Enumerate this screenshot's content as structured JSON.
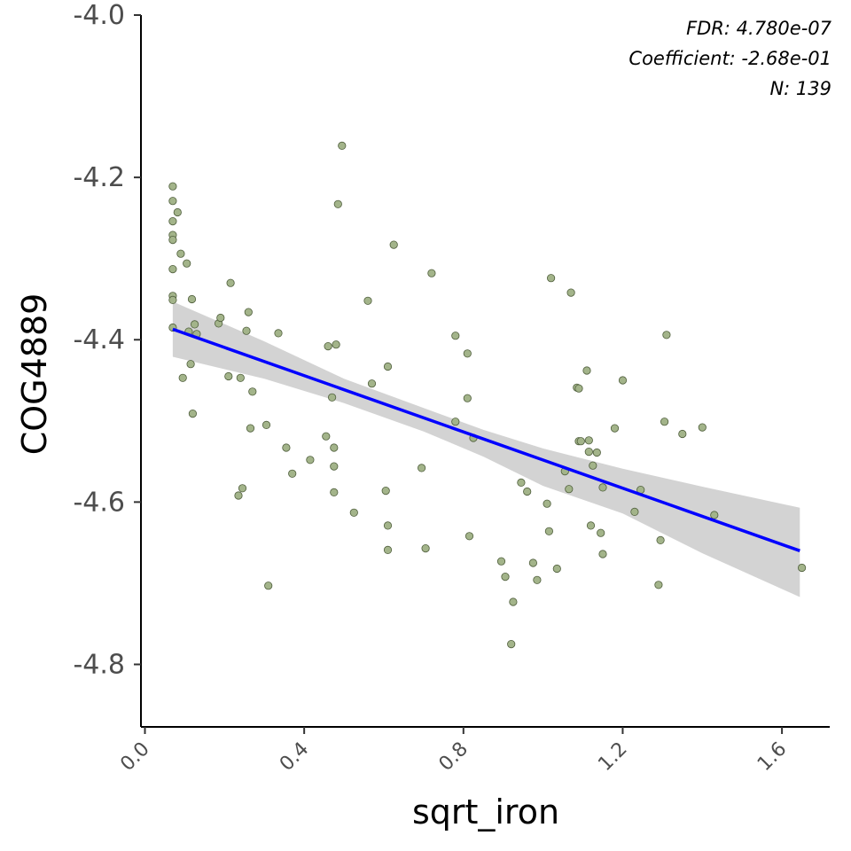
{
  "chart_data": {
    "type": "scatter",
    "xlabel": "sqrt_iron",
    "ylabel": "COG4889",
    "xlim": [
      -0.01,
      1.72
    ],
    "ylim": [
      -4.877,
      -4.0
    ],
    "x_ticks": [
      0.0,
      0.4,
      0.8,
      1.2,
      1.6
    ],
    "x_tick_labels": [
      "0.0",
      "0.4",
      "0.8",
      "1.2",
      "1.6"
    ],
    "y_ticks": [
      -4.0,
      -4.2,
      -4.4,
      -4.6,
      -4.8
    ],
    "y_tick_labels": [
      "-4.0",
      "-4.2",
      "-4.4",
      "-4.6",
      "-4.8"
    ],
    "grid": false,
    "annotations": [
      "FDR: 4.780e-07",
      "Coefficient: -2.68e-01",
      "N: 139"
    ],
    "colors": {
      "points": "#a3b48a",
      "point_stroke": "#4f5e3c",
      "fit_line": "#0000ff",
      "confidence_band": "#d3d3d3"
    },
    "fit_line": {
      "x": [
        0.07,
        1.645
      ],
      "y": [
        -4.387,
        -4.66
      ]
    },
    "confidence_band": {
      "x": [
        0.07,
        0.3,
        0.5,
        0.7,
        0.85,
        1.0,
        1.2,
        1.4,
        1.645
      ],
      "upper": [
        -4.353,
        -4.402,
        -4.448,
        -4.484,
        -4.511,
        -4.534,
        -4.559,
        -4.581,
        -4.607
      ],
      "lower": [
        -4.421,
        -4.448,
        -4.478,
        -4.513,
        -4.544,
        -4.58,
        -4.614,
        -4.663,
        -4.717
      ]
    },
    "series": [
      {
        "x": [
          0.07,
          0.07,
          0.07,
          0.07,
          0.07,
          0.07,
          0.07,
          0.07,
          0.07,
          0.082,
          0.09,
          0.095,
          0.105,
          0.11,
          0.115,
          0.118,
          0.12,
          0.125,
          0.13,
          0.185,
          0.19,
          0.21,
          0.215,
          0.235,
          0.24,
          0.245,
          0.255,
          0.26,
          0.265,
          0.27,
          0.305,
          0.31,
          0.335,
          0.355,
          0.37,
          0.415,
          0.455,
          0.46,
          0.47,
          0.475,
          0.475,
          0.475,
          0.48,
          0.485,
          0.495,
          0.525,
          0.56,
          0.57,
          0.605,
          0.61,
          0.61,
          0.61,
          0.625,
          0.695,
          0.705,
          0.72,
          0.78,
          0.78,
          0.81,
          0.81,
          0.815,
          0.825,
          0.895,
          0.905,
          0.92,
          0.925,
          0.945,
          0.96,
          0.975,
          0.985,
          1.01,
          1.015,
          1.02,
          1.035,
          1.055,
          1.065,
          1.07,
          1.085,
          1.09,
          1.09,
          1.095,
          1.11,
          1.115,
          1.115,
          1.12,
          1.125,
          1.135,
          1.145,
          1.15,
          1.15,
          1.18,
          1.2,
          1.23,
          1.245,
          1.29,
          1.295,
          1.305,
          1.31,
          1.35,
          1.4,
          1.43,
          1.65
        ],
        "y": [
          -4.211,
          -4.229,
          -4.254,
          -4.271,
          -4.277,
          -4.313,
          -4.346,
          -4.351,
          -4.385,
          -4.243,
          -4.294,
          -4.447,
          -4.306,
          -4.39,
          -4.43,
          -4.35,
          -4.491,
          -4.381,
          -4.393,
          -4.38,
          -4.373,
          -4.445,
          -4.33,
          -4.592,
          -4.447,
          -4.583,
          -4.389,
          -4.366,
          -4.509,
          -4.464,
          -4.505,
          -4.703,
          -4.392,
          -4.533,
          -4.565,
          -4.548,
          -4.519,
          -4.408,
          -4.471,
          -4.533,
          -4.556,
          -4.588,
          -4.406,
          -4.233,
          -4.161,
          -4.613,
          -4.352,
          -4.454,
          -4.586,
          -4.433,
          -4.629,
          -4.659,
          -4.283,
          -4.558,
          -4.657,
          -4.318,
          -4.395,
          -4.501,
          -4.417,
          -4.472,
          -4.642,
          -4.521,
          -4.673,
          -4.692,
          -4.775,
          -4.723,
          -4.576,
          -4.587,
          -4.675,
          -4.696,
          -4.602,
          -4.636,
          -4.324,
          -4.682,
          -4.562,
          -4.584,
          -4.342,
          -4.459,
          -4.46,
          -4.525,
          -4.525,
          -4.438,
          -4.524,
          -4.538,
          -4.629,
          -4.555,
          -4.539,
          -4.638,
          -4.664,
          -4.582,
          -4.509,
          -4.45,
          -4.612,
          -4.585,
          -4.702,
          -4.647,
          -4.501,
          -4.394,
          -4.516,
          -4.508,
          -4.616,
          -4.681
        ]
      }
    ]
  }
}
